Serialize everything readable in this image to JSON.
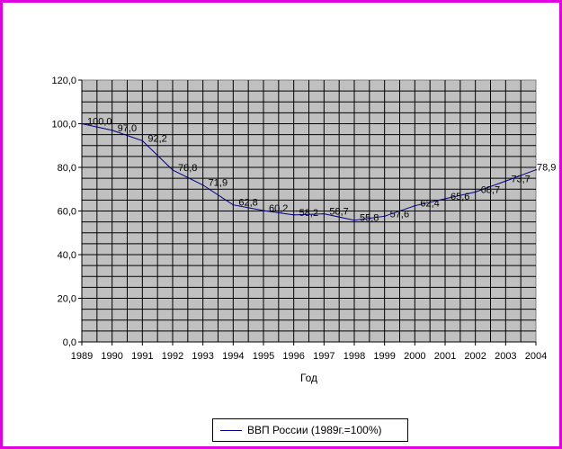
{
  "chart_data": {
    "type": "line",
    "title": "",
    "xlabel": "Год",
    "ylabel": "",
    "x": [
      "1989",
      "1990",
      "1991",
      "1992",
      "1993",
      "1994",
      "1995",
      "1996",
      "1997",
      "1998",
      "1999",
      "2000",
      "2001",
      "2002",
      "2003",
      "2004"
    ],
    "series": [
      {
        "name": "ВВП России (1989г.=100%)",
        "values": [
          100.0,
          97.0,
          92.2,
          78.8,
          71.9,
          62.8,
          60.2,
          58.2,
          58.7,
          55.8,
          57.6,
          62.4,
          65.6,
          68.7,
          73.7,
          78.9
        ],
        "labels": [
          "100,0",
          "97,0",
          "92,2",
          "78,8",
          "71,9",
          "62,8",
          "60,2",
          "58,2",
          "58,7",
          "55,8",
          "57,6",
          "62,4",
          "65,6",
          "68,7",
          "73,7",
          "78,9"
        ]
      }
    ],
    "ylim": [
      0,
      120
    ],
    "yticks": [
      "0,0",
      "20,0",
      "40,0",
      "60,0",
      "80,0",
      "100,0",
      "120,0"
    ],
    "grid": true,
    "legend_position": "bottom",
    "colors": {
      "line": "#000080",
      "plot_background": "#c0c0c0",
      "gridlines": "#000000",
      "border": "#e000e0"
    }
  }
}
